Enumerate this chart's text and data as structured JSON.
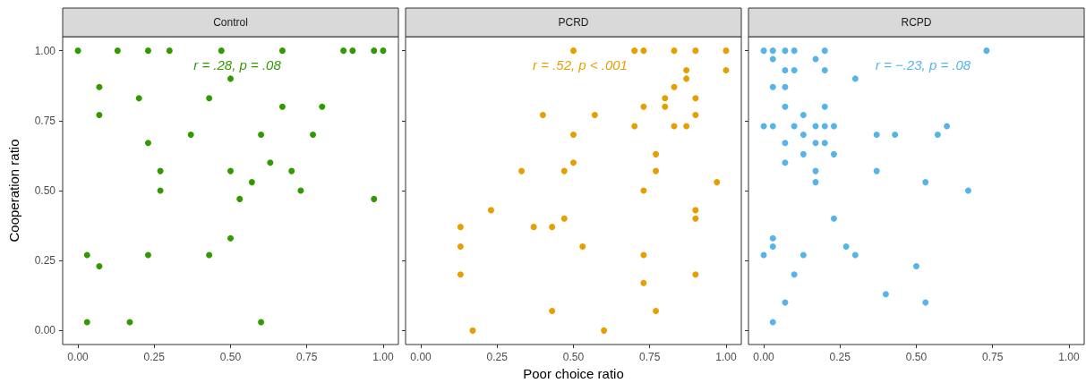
{
  "chart_data": [
    {
      "type": "scatter",
      "title": "Control",
      "ylabel": "Cooperation ratio",
      "annotations": [
        "r = .28, p = .08"
      ],
      "color": "#339900",
      "marker": "circle",
      "grid": false,
      "x": [
        0,
        0.13,
        0.23,
        0.3,
        0.47,
        0.67,
        0.87,
        0.9,
        0.97,
        1,
        0.5,
        0.07,
        0.2,
        0.43,
        0.67,
        0.8,
        0.07,
        0.37,
        0.6,
        0.77,
        0.23,
        0.63,
        0.27,
        0.5,
        0.7,
        0.57,
        0.27,
        0.73,
        0.53,
        0.97,
        0.5,
        0.03,
        0.23,
        0.43,
        0.07,
        0.03,
        0.17,
        0.6
      ],
      "values": [
        1,
        1,
        1,
        1,
        1,
        1,
        1,
        1,
        1,
        1,
        0.9,
        0.87,
        0.83,
        0.83,
        0.8,
        0.8,
        0.77,
        0.7,
        0.7,
        0.7,
        0.67,
        0.6,
        0.57,
        0.57,
        0.57,
        0.53,
        0.5,
        0.5,
        0.47,
        0.47,
        0.33,
        0.27,
        0.27,
        0.27,
        0.23,
        0.03,
        0.03,
        0.03
      ],
      "xlim": [
        -0.05,
        1.05
      ],
      "ylim": [
        -0.05,
        1.05
      ],
      "xticks": [
        {
          "value": 0,
          "label": "0.00"
        },
        {
          "value": 0.25,
          "label": "0.25"
        },
        {
          "value": 0.5,
          "label": "0.50"
        },
        {
          "value": 0.75,
          "label": "0.75"
        },
        {
          "value": 1,
          "label": "1.00"
        }
      ],
      "yticks": [
        {
          "value": 0,
          "label": "0.00"
        },
        {
          "value": 0.25,
          "label": "0.25"
        },
        {
          "value": 0.5,
          "label": "0.50"
        },
        {
          "value": 0.75,
          "label": "0.75"
        },
        {
          "value": 1,
          "label": "1.00"
        }
      ]
    },
    {
      "type": "scatter",
      "title": "PCRD",
      "xlabel": "Poor choice ratio",
      "annotations": [
        "r = .52, p < .001"
      ],
      "color": "#e69f00",
      "marker": "circle",
      "grid": false,
      "tick_labels": "x",
      "x": [
        0.5,
        0.7,
        0.73,
        0.83,
        0.9,
        1,
        0.87,
        1,
        0.87,
        0.83,
        0.8,
        0.9,
        0.73,
        0.8,
        0.4,
        0.57,
        0.9,
        0.7,
        0.83,
        0.87,
        0.5,
        0.77,
        0.5,
        0.33,
        0.47,
        0.77,
        0.97,
        0.73,
        0.23,
        0.9,
        0.47,
        0.9,
        0.13,
        0.37,
        0.43,
        0.13,
        0.53,
        0.73,
        0.13,
        0.9,
        0.73,
        0.43,
        0.77,
        0.17,
        0.6
      ],
      "values": [
        1,
        1,
        1,
        1,
        1,
        1,
        0.93,
        0.93,
        0.9,
        0.87,
        0.83,
        0.83,
        0.8,
        0.8,
        0.77,
        0.77,
        0.77,
        0.73,
        0.73,
        0.73,
        0.7,
        0.63,
        0.6,
        0.57,
        0.57,
        0.57,
        0.53,
        0.5,
        0.43,
        0.43,
        0.4,
        0.4,
        0.37,
        0.37,
        0.37,
        0.3,
        0.3,
        0.27,
        0.2,
        0.2,
        0.17,
        0.07,
        0.07,
        0,
        0
      ],
      "xlim": [
        -0.05,
        1.05
      ],
      "ylim": [
        -0.05,
        1.05
      ],
      "xticks": [
        {
          "value": 0,
          "label": "0.00"
        },
        {
          "value": 0.25,
          "label": "0.25"
        },
        {
          "value": 0.5,
          "label": "0.50"
        },
        {
          "value": 0.75,
          "label": "0.75"
        },
        {
          "value": 1,
          "label": "1.00"
        }
      ],
      "yticks": [
        0,
        0.25,
        0.5,
        0.75,
        1
      ]
    },
    {
      "type": "scatter",
      "title": "RCPD",
      "annotations": [
        "r = −.23, p = .08"
      ],
      "color": "#56b4e9",
      "marker": "circle",
      "grid": false,
      "tick_labels": "x",
      "x": [
        0,
        0.03,
        0.07,
        0.1,
        0.2,
        0.73,
        0.03,
        0.17,
        0.07,
        0.1,
        0.2,
        0.3,
        0.03,
        0.07,
        0.07,
        0.2,
        0.13,
        0,
        0.03,
        0.1,
        0.17,
        0.2,
        0.23,
        0.6,
        0.13,
        0.37,
        0.43,
        0.57,
        0.07,
        0.17,
        0.2,
        0.13,
        0.23,
        0.07,
        0.17,
        0.37,
        0.17,
        0.53,
        0.67,
        0.23,
        0.03,
        0.03,
        0.27,
        0,
        0.13,
        0.3,
        0.5,
        0.1,
        0.4,
        0.07,
        0.53,
        0.03
      ],
      "values": [
        1,
        1,
        1,
        1,
        1,
        1,
        0.97,
        0.97,
        0.93,
        0.93,
        0.93,
        0.9,
        0.87,
        0.87,
        0.8,
        0.8,
        0.77,
        0.73,
        0.73,
        0.73,
        0.73,
        0.73,
        0.73,
        0.73,
        0.7,
        0.7,
        0.7,
        0.7,
        0.67,
        0.67,
        0.67,
        0.63,
        0.63,
        0.6,
        0.57,
        0.57,
        0.53,
        0.53,
        0.5,
        0.4,
        0.33,
        0.3,
        0.3,
        0.27,
        0.27,
        0.27,
        0.23,
        0.2,
        0.13,
        0.1,
        0.1,
        0.03
      ],
      "xlim": [
        -0.05,
        1.05
      ],
      "ylim": [
        -0.05,
        1.05
      ],
      "xticks": [
        {
          "value": 0,
          "label": "0.00"
        },
        {
          "value": 0.25,
          "label": "0.25"
        },
        {
          "value": 0.5,
          "label": "0.50"
        },
        {
          "value": 0.75,
          "label": "0.75"
        },
        {
          "value": 1,
          "label": "1.00"
        }
      ],
      "yticks": [
        0,
        0.25,
        0.5,
        0.75,
        1
      ]
    }
  ]
}
